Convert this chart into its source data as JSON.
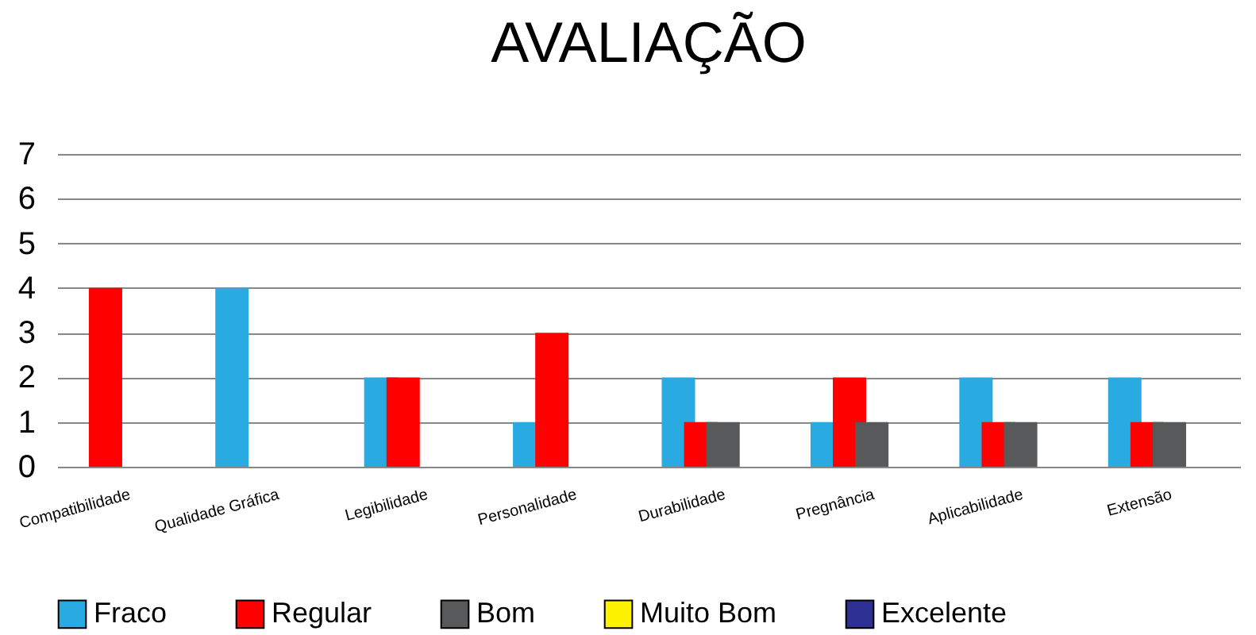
{
  "chart_data": {
    "type": "bar",
    "title": "AVALIAÇÃO",
    "categories": [
      "Compatibilidade",
      "Qualidade Gráfica",
      "Legibilidade",
      "Personalidade",
      "Durabilidade",
      "Pregnância",
      "Aplicabilidade",
      "Extensão"
    ],
    "series": [
      {
        "name": "Fraco",
        "color": "#29abe2",
        "values": [
          0,
          4,
          2,
          1,
          2,
          1,
          2,
          2
        ]
      },
      {
        "name": "Regular",
        "color": "#ff0000",
        "values": [
          4,
          0,
          2,
          3,
          1,
          2,
          1,
          1
        ]
      },
      {
        "name": "Bom",
        "color": "#58595b",
        "values": [
          0,
          0,
          0,
          0,
          1,
          1,
          1,
          1
        ]
      },
      {
        "name": "Muito Bom",
        "color": "#fff200",
        "values": [
          0,
          0,
          0,
          0,
          0,
          0,
          0,
          0
        ]
      },
      {
        "name": "Excelente",
        "color": "#2e3192",
        "values": [
          0,
          0,
          0,
          0,
          0,
          0,
          0,
          0
        ]
      }
    ],
    "ylim": [
      0,
      7
    ],
    "yticks": [
      0,
      1,
      2,
      3,
      4,
      5,
      6,
      7
    ],
    "grid": "y",
    "legend": "bottom"
  }
}
